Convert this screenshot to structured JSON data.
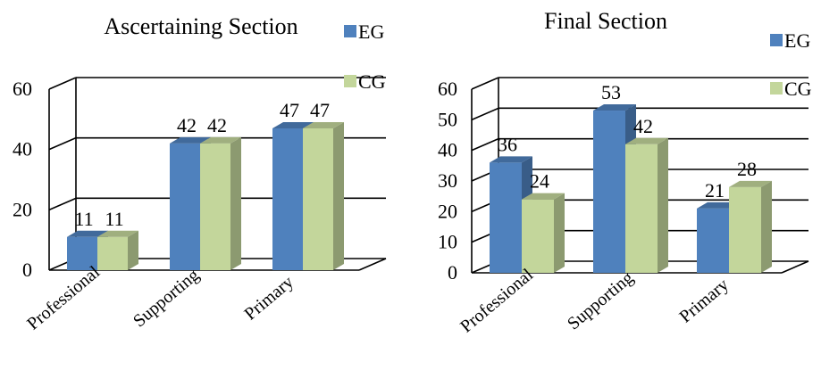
{
  "chart_data": [
    {
      "type": "bar",
      "title": "Ascertaining Section",
      "categories": [
        "Professional",
        "Supporting",
        "Primary"
      ],
      "series": [
        {
          "name": "EG",
          "values": [
            11,
            42,
            47
          ],
          "color": "#4f81bd"
        },
        {
          "name": "CG",
          "values": [
            11,
            42,
            47
          ],
          "color": "#c3d69b"
        }
      ],
      "ylim": [
        0,
        60
      ],
      "yticks": [
        "0",
        "20",
        "40",
        "60"
      ],
      "grid": true,
      "legend": "top-right",
      "three_d": true
    },
    {
      "type": "bar",
      "title": "Final Section",
      "categories": [
        "Professional",
        "Supporting",
        "Primary"
      ],
      "series": [
        {
          "name": "EG",
          "values": [
            36,
            53,
            21
          ],
          "color": "#4f81bd"
        },
        {
          "name": "CG",
          "values": [
            24,
            42,
            28
          ],
          "color": "#c3d69b"
        }
      ],
      "ylim": [
        0,
        60
      ],
      "yticks": [
        "0",
        "10",
        "20",
        "30",
        "40",
        "50",
        "60"
      ],
      "grid": true,
      "legend": "top-right",
      "three_d": true
    }
  ]
}
